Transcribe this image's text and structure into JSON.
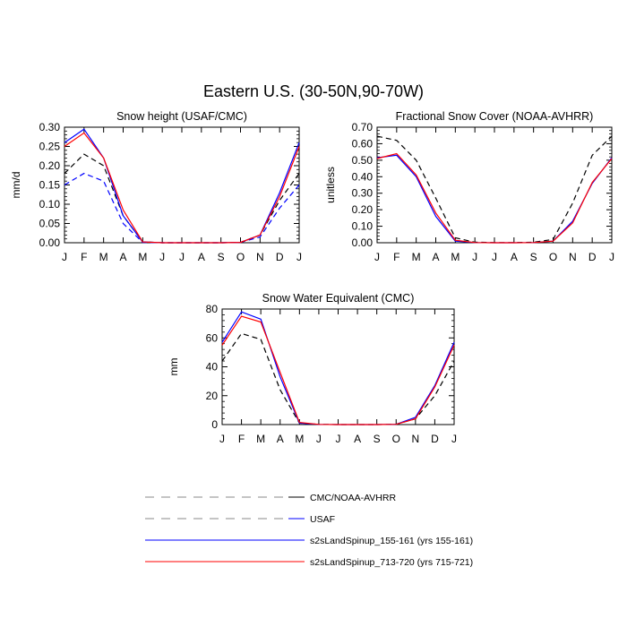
{
  "figure_title": "Eastern U.S. (30-50N,90-70W)",
  "colors": {
    "obs": "#000000",
    "usaf": "#0000ff",
    "run1": "#0000ff",
    "run2": "#ff0000",
    "legend_gray": "#888888"
  },
  "legend": [
    {
      "label": "CMC/NOAA-AVHRR",
      "style": "dashed",
      "color": "#000000"
    },
    {
      "label": "USAF",
      "style": "dashed",
      "color": "#0000ff"
    },
    {
      "label": "s2sLandSpinup_155-161 (yrs 155-161)",
      "style": "solid",
      "color": "#0000ff"
    },
    {
      "label": "s2sLandSpinup_713-720 (yrs 715-721)",
      "style": "solid",
      "color": "#ff0000"
    }
  ],
  "chart_data": [
    {
      "type": "line",
      "title": "Snow height (USAF/CMC)",
      "ylabel": "mm/d",
      "xlabel": "",
      "categories": [
        "J",
        "F",
        "M",
        "A",
        "M",
        "J",
        "J",
        "A",
        "S",
        "O",
        "N",
        "D",
        "J"
      ],
      "ylim": [
        0,
        0.3
      ],
      "yticks": [
        "0.00",
        "0.05",
        "0.10",
        "0.15",
        "0.20",
        "0.25",
        "0.30"
      ],
      "series": [
        {
          "name": "CMC/NOAA-AVHRR",
          "style": "dashed",
          "color": "#000000",
          "values": [
            0.18,
            0.23,
            0.2,
            0.07,
            0.002,
            0,
            0,
            0,
            0,
            0.001,
            0.02,
            0.11,
            0.18
          ]
        },
        {
          "name": "USAF",
          "style": "dashed",
          "color": "#0000ff",
          "values": [
            0.15,
            0.18,
            0.16,
            0.05,
            0.001,
            0,
            0,
            0,
            0,
            0.001,
            0.015,
            0.09,
            0.15
          ]
        },
        {
          "name": "s2sLandSpinup_155-161 (yrs 155-161)",
          "style": "solid",
          "color": "#0000ff",
          "values": [
            0.26,
            0.295,
            0.22,
            0.07,
            0.002,
            0,
            0,
            0,
            0,
            0.001,
            0.02,
            0.13,
            0.26
          ]
        },
        {
          "name": "s2sLandSpinup_713-720 (yrs 715-721)",
          "style": "solid",
          "color": "#ff0000",
          "values": [
            0.25,
            0.285,
            0.22,
            0.085,
            0.002,
            0,
            0,
            0,
            0,
            0.001,
            0.02,
            0.12,
            0.25
          ]
        }
      ]
    },
    {
      "type": "line",
      "title": "Fractional Snow Cover (NOAA-AVHRR)",
      "ylabel": "unitless",
      "xlabel": "",
      "categories": [
        "J",
        "F",
        "M",
        "A",
        "M",
        "J",
        "J",
        "A",
        "S",
        "O",
        "N",
        "D",
        "J"
      ],
      "ylim": [
        0,
        0.7
      ],
      "yticks": [
        "0.00",
        "0.10",
        "0.20",
        "0.30",
        "0.40",
        "0.50",
        "0.60",
        "0.70"
      ],
      "series": [
        {
          "name": "CMC/NOAA-AVHRR",
          "style": "dashed",
          "color": "#000000",
          "values": [
            0.645,
            0.62,
            0.5,
            0.27,
            0.03,
            0.003,
            0.001,
            0.001,
            0.003,
            0.02,
            0.24,
            0.53,
            0.645
          ]
        },
        {
          "name": "s2sLandSpinup_155-161 (yrs 155-161)",
          "style": "solid",
          "color": "#0000ff",
          "values": [
            0.515,
            0.53,
            0.4,
            0.16,
            0.01,
            0.001,
            0,
            0,
            0.001,
            0.01,
            0.13,
            0.36,
            0.515
          ]
        },
        {
          "name": "s2sLandSpinup_713-720 (yrs 715-721)",
          "style": "solid",
          "color": "#ff0000",
          "values": [
            0.51,
            0.54,
            0.41,
            0.18,
            0.015,
            0.001,
            0,
            0,
            0.001,
            0.01,
            0.12,
            0.365,
            0.51
          ]
        }
      ]
    },
    {
      "type": "line",
      "title": "Snow Water Equivalent (CMC)",
      "ylabel": "mm",
      "xlabel": "",
      "categories": [
        "J",
        "F",
        "M",
        "A",
        "M",
        "J",
        "J",
        "A",
        "S",
        "O",
        "N",
        "D",
        "J"
      ],
      "ylim": [
        0,
        80
      ],
      "yticks": [
        "0",
        "20",
        "40",
        "60",
        "80"
      ],
      "series": [
        {
          "name": "CMC/NOAA-AVHRR",
          "style": "dashed",
          "color": "#000000",
          "values": [
            44,
            63,
            59,
            24,
            1,
            0.1,
            0,
            0,
            0,
            0.2,
            4,
            20,
            44
          ]
        },
        {
          "name": "s2sLandSpinup_155-161 (yrs 155-161)",
          "style": "solid",
          "color": "#0000ff",
          "values": [
            57,
            78,
            73,
            33,
            1,
            0.1,
            0,
            0,
            0,
            0.2,
            5,
            27,
            57
          ]
        },
        {
          "name": "s2sLandSpinup_713-720 (yrs 715-721)",
          "style": "solid",
          "color": "#ff0000",
          "values": [
            55,
            75,
            71,
            36,
            1.5,
            0.1,
            0,
            0,
            0,
            0.2,
            4,
            26,
            55
          ]
        }
      ]
    }
  ]
}
